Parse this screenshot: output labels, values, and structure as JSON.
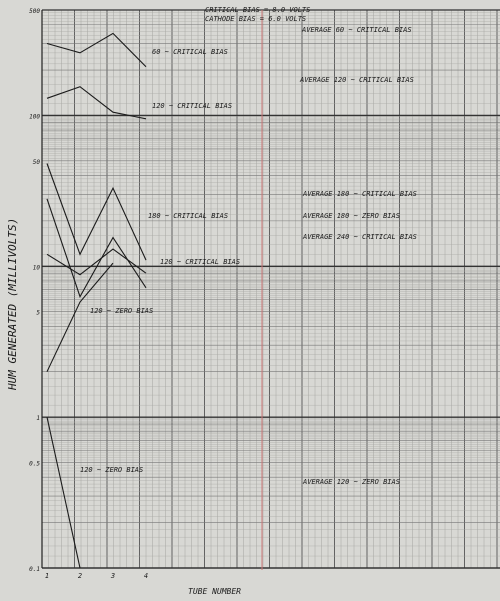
{
  "chart_data": {
    "type": "line",
    "title": "",
    "header_lines": [
      "CRITICAL BIAS = 8.0 VOLTS",
      "CATHODE BIAS = 6.0 VOLTS"
    ],
    "xlabel": "TUBE NUMBER",
    "ylabel": "HUM GENERATED (MILLIVOLTS)",
    "x_ticks": [
      "1",
      "2",
      "3",
      "4"
    ],
    "y_scale": "log",
    "ylim": [
      0.1,
      500
    ],
    "y_tick_labels": [
      "500",
      "100",
      "50",
      "10",
      "5",
      "1",
      "0.5",
      "0.1"
    ],
    "grid": true,
    "series": [
      {
        "name": "60 ~ CRITICAL BIAS",
        "x": [
          1,
          2,
          3,
          4
        ],
        "y": [
          300,
          260,
          350,
          210
        ]
      },
      {
        "name": "120 ~ CRITICAL BIAS",
        "x": [
          1,
          2,
          3,
          4
        ],
        "y": [
          130,
          155,
          105,
          95
        ]
      },
      {
        "name": "180 ~ CRITICAL BIAS",
        "x": [
          1,
          2,
          3,
          4
        ],
        "y": [
          48,
          12,
          33,
          11
        ]
      },
      {
        "name": "120 ~ CRITICAL BIAS",
        "x": [
          1,
          2,
          3,
          4
        ],
        "y": [
          28,
          6.3,
          15.5,
          7.2
        ]
      },
      {
        "name": "180 ~ ZERO BIAS",
        "x": [
          1,
          2,
          3,
          4
        ],
        "y": [
          12,
          8.8,
          13,
          9
        ]
      },
      {
        "name": "120 ~ ZERO BIAS",
        "x": [
          1,
          2,
          3
        ],
        "y": [
          2.0,
          5.8,
          10.5
        ]
      },
      {
        "name": "120 ~ ZERO BIAS",
        "x": [
          1,
          2
        ],
        "y": [
          1.0,
          0.1
        ]
      }
    ],
    "annotations": [
      "AVERAGE 60 ~ CRITICAL BIAS",
      "AVERAGE 120 ~ CRITICAL BIAS",
      "AVERAGE 180 ~ CRITICAL BIAS",
      "AVERAGE 180 ~ ZERO BIAS",
      "AVERAGE 240 ~ CRITICAL BIAS",
      "AVERAGE 120 ~ ZERO BIAS"
    ]
  }
}
